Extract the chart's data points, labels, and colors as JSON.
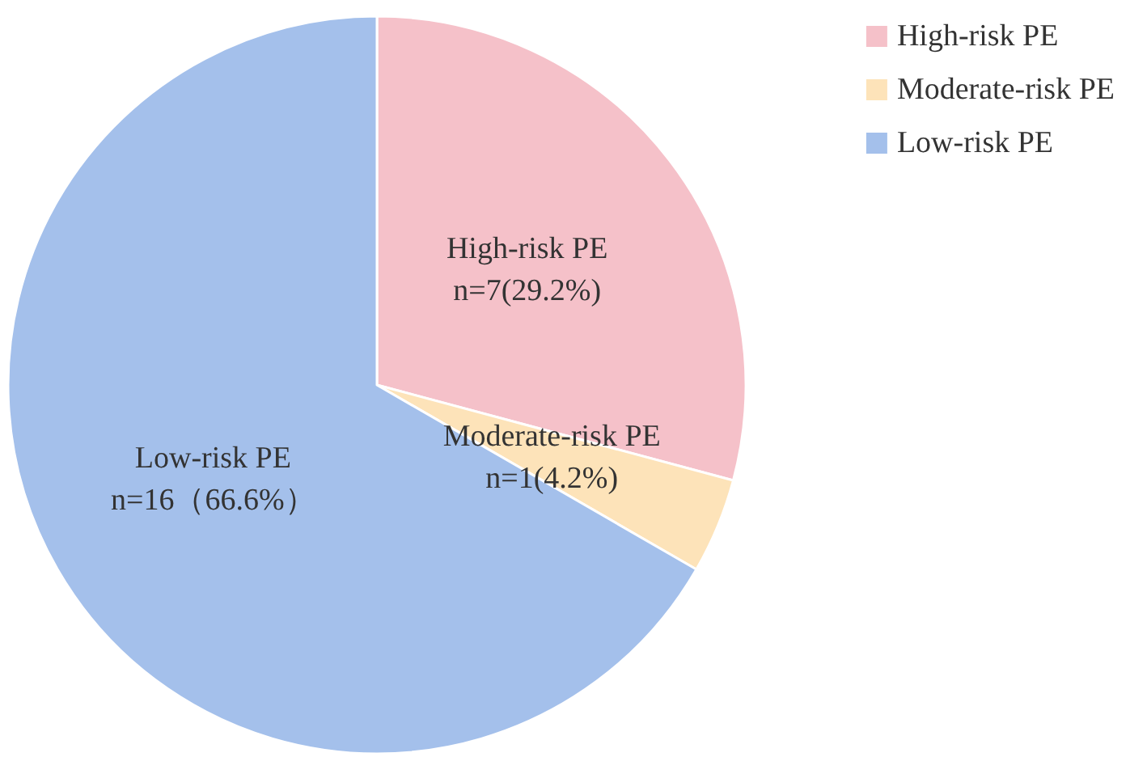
{
  "chart_data": {
    "type": "pie",
    "categories": [
      "High-risk PE",
      "Moderate-risk PE",
      "Low-risk PE"
    ],
    "values": [
      7,
      1,
      16
    ],
    "value_labels": [
      "n=7(29.2%)",
      "n=1(4.2%)",
      "n=16（66.6%）"
    ],
    "colors": [
      "#f5c1c9",
      "#fde3b9",
      "#a4c0eb"
    ],
    "legend": "top right"
  }
}
